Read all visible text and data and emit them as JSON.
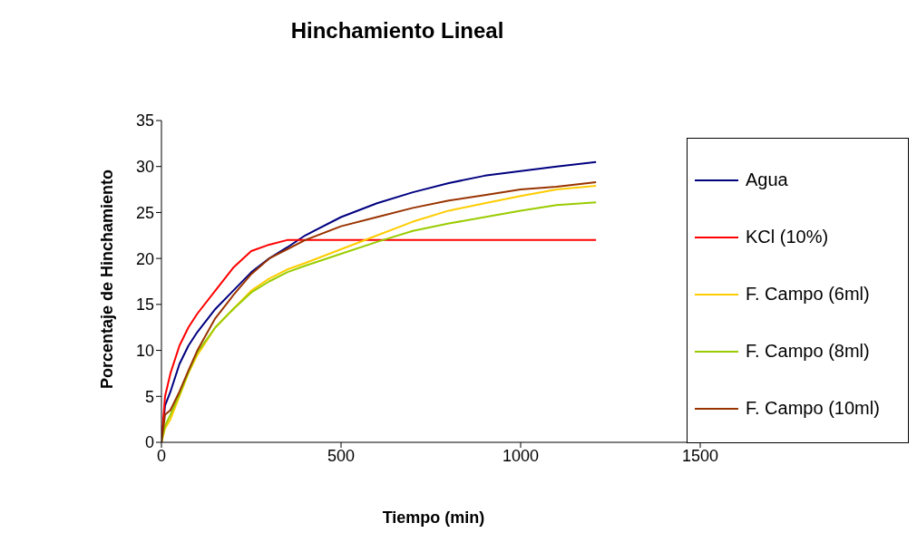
{
  "chart_data": {
    "type": "line",
    "title": "Hinchamiento Lineal",
    "xlabel": "Tiempo (min)",
    "ylabel": "Porcentaje de Hinchamiento",
    "xlim": [
      0,
      1500
    ],
    "xticks": [
      0,
      500,
      1000,
      1500
    ],
    "ylim": [
      0,
      35
    ],
    "yticks": [
      0,
      5,
      10,
      15,
      20,
      25,
      30,
      35
    ],
    "grid": false,
    "legend": "right",
    "series": [
      {
        "name": "Agua",
        "color": "#000080",
        "x": [
          0,
          10,
          25,
          50,
          75,
          100,
          150,
          200,
          250,
          300,
          350,
          400,
          500,
          600,
          700,
          800,
          900,
          1000,
          1100,
          1210
        ],
        "values": [
          0,
          4,
          5.5,
          8.5,
          10.5,
          12,
          14.5,
          16.5,
          18.5,
          20,
          21.2,
          22.5,
          24.5,
          26,
          27.2,
          28.2,
          29,
          29.5,
          30,
          30.5
        ]
      },
      {
        "name": "KCl (10%)",
        "color": "#ff0000",
        "x": [
          0,
          10,
          25,
          50,
          75,
          100,
          150,
          200,
          250,
          300,
          350,
          400,
          500,
          600,
          700,
          800,
          900,
          1000,
          1100,
          1210
        ],
        "values": [
          0,
          5,
          7.5,
          10.5,
          12.5,
          14,
          16.5,
          19,
          20.8,
          21.5,
          22,
          22,
          22,
          22,
          22,
          22,
          22,
          22,
          22,
          22
        ]
      },
      {
        "name": "F. Campo (6ml)",
        "color": "#ffcc00",
        "x": [
          0,
          10,
          25,
          50,
          75,
          100,
          150,
          200,
          250,
          300,
          350,
          400,
          500,
          600,
          700,
          800,
          900,
          1000,
          1100,
          1210
        ],
        "values": [
          0,
          1.5,
          2.5,
          5,
          7.5,
          9.5,
          12.5,
          14.5,
          16.5,
          17.8,
          18.8,
          19.5,
          21,
          22.5,
          24,
          25.2,
          26,
          26.8,
          27.5,
          27.9
        ]
      },
      {
        "name": "F. Campo (8ml)",
        "color": "#99cc00",
        "x": [
          0,
          10,
          25,
          50,
          75,
          100,
          150,
          200,
          250,
          300,
          350,
          400,
          500,
          600,
          700,
          800,
          900,
          1000,
          1100,
          1210
        ],
        "values": [
          0,
          1.8,
          3,
          5.2,
          7.6,
          9.8,
          12.5,
          14.5,
          16.3,
          17.5,
          18.5,
          19.2,
          20.5,
          21.8,
          23,
          23.8,
          24.5,
          25.2,
          25.8,
          26.1
        ]
      },
      {
        "name": "F. Campo (10ml)",
        "color": "#993300",
        "x": [
          0,
          10,
          25,
          50,
          75,
          100,
          150,
          200,
          250,
          300,
          350,
          400,
          500,
          600,
          700,
          800,
          900,
          1000,
          1100,
          1210
        ],
        "values": [
          0,
          3,
          3.5,
          5.5,
          7.8,
          10,
          13.5,
          16,
          18.3,
          20,
          21,
          22,
          23.5,
          24.5,
          25.5,
          26.3,
          26.9,
          27.5,
          27.8,
          28.3
        ]
      }
    ]
  }
}
